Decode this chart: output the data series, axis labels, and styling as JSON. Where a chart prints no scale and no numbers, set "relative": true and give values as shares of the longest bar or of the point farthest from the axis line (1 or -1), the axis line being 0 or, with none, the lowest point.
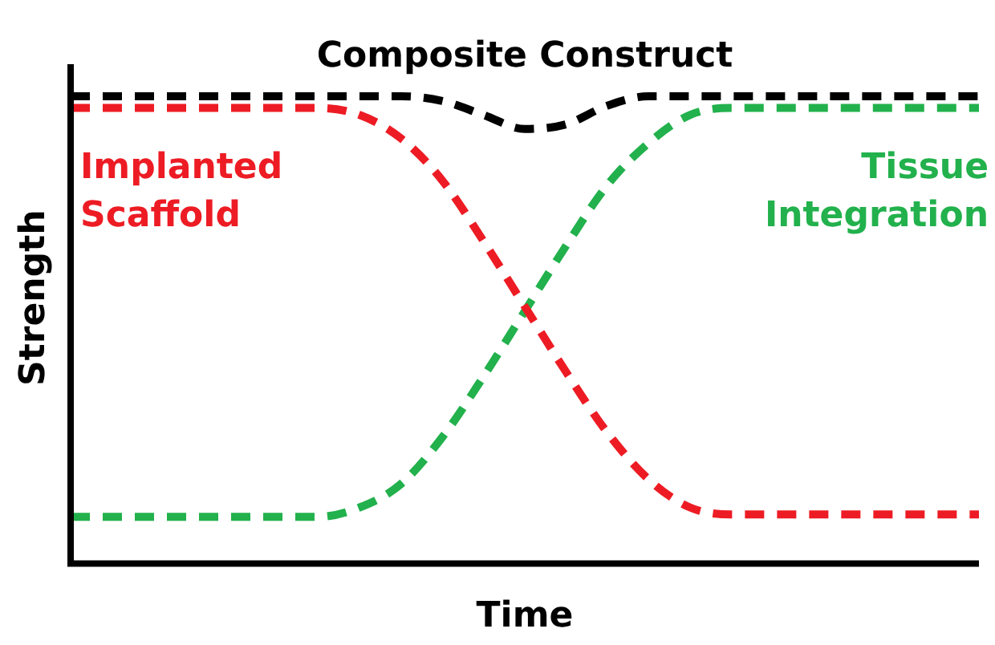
{
  "chart_data": {
    "type": "line",
    "relative": true,
    "xlabel": "Time",
    "ylabel": "Strength",
    "legend": false,
    "marker": "none",
    "line_style": "dashed",
    "grid": false,
    "categories": [
      null,
      null,
      null,
      null,
      null,
      null,
      null,
      null,
      null,
      null,
      null,
      null,
      null,
      null,
      null,
      null,
      null,
      null,
      null,
      null,
      null,
      null,
      null
    ],
    "series": [
      {
        "name": "Composite Construct",
        "color": "#000000",
        "values": [
          1,
          1,
          1,
          1,
          1,
          1,
          1,
          1,
          1,
          0.99,
          0.96,
          0.93,
          0.94,
          0.98,
          1,
          1,
          1,
          1,
          1,
          1,
          1,
          1,
          1
        ]
      },
      {
        "name": "Implanted Scaffold",
        "color": "#ed1c24",
        "values": [
          0.975,
          0.975,
          0.975,
          0.975,
          0.975,
          0.975,
          0.975,
          0.96,
          0.91,
          0.82,
          0.69,
          0.55,
          0.41,
          0.28,
          0.18,
          0.12,
          0.105,
          0.105,
          0.105,
          0.105,
          0.105,
          0.105,
          0.105
        ]
      },
      {
        "name": "Tissue Integration",
        "color": "#22b14c",
        "values": [
          0.1,
          0.1,
          0.1,
          0.1,
          0.1,
          0.1,
          0.1,
          0.12,
          0.17,
          0.27,
          0.4,
          0.54,
          0.68,
          0.81,
          0.9,
          0.96,
          0.975,
          0.975,
          0.975,
          0.975,
          0.975,
          0.975,
          0.975
        ]
      }
    ]
  }
}
